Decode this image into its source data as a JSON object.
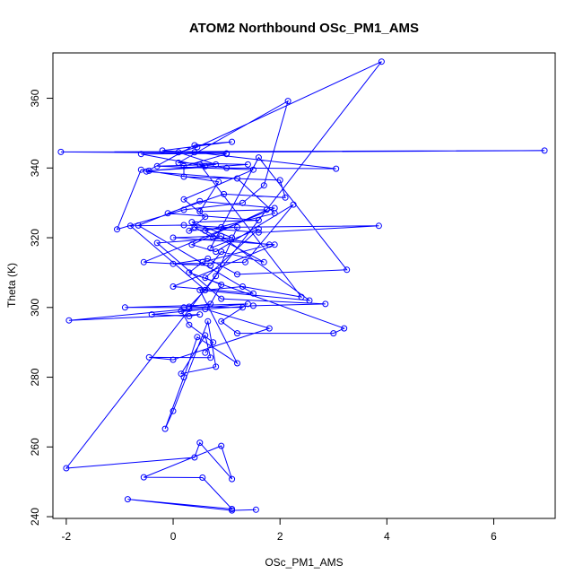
{
  "chart_data": {
    "type": "line",
    "title": "ATOM2 Northbound OSc_PM1_AMS",
    "xlabel": "OSc_PM1_AMS",
    "ylabel": "Theta (K)",
    "xlim": [
      -2.25,
      7.15
    ],
    "ylim": [
      239.5,
      373.0
    ],
    "x_ticks": [
      -2,
      0,
      2,
      4,
      6
    ],
    "y_ticks": [
      240,
      260,
      280,
      300,
      320,
      340,
      360
    ],
    "x_tick_labels": [
      "-2",
      "0",
      "2",
      "4",
      "6"
    ],
    "y_tick_labels": [
      "240",
      "260",
      "280",
      "300",
      "320",
      "340",
      "360"
    ],
    "grid": false,
    "legend": "none",
    "series_color": "#0000ff",
    "points": [
      [
        1.55,
        242.0
      ],
      [
        1.1,
        241.8
      ],
      [
        -0.85,
        245.0
      ],
      [
        1.1,
        242.2
      ],
      [
        0.55,
        251.2
      ],
      [
        -0.55,
        251.3
      ],
      [
        0.9,
        260.3
      ],
      [
        1.1,
        250.8
      ],
      [
        0.5,
        261.2
      ],
      [
        0.4,
        257.0
      ],
      [
        -2.0,
        253.9
      ],
      [
        3.9,
        370.5
      ],
      [
        0.45,
        346.0
      ],
      [
        0.1,
        344.5
      ],
      [
        0.8,
        341.0
      ],
      [
        -0.3,
        340.5
      ],
      [
        1.5,
        339.5
      ],
      [
        0.2,
        331.0
      ],
      [
        0.6,
        326.0
      ],
      [
        0.3,
        322.0
      ],
      [
        1.2,
        323.0
      ],
      [
        0.8,
        309.0
      ],
      [
        0.6,
        305.0
      ],
      [
        0.3,
        300.2
      ],
      [
        1.3,
        300.0
      ],
      [
        0.9,
        296.0
      ],
      [
        1.2,
        292.6
      ],
      [
        3.0,
        292.6
      ],
      [
        3.2,
        294.0
      ],
      [
        0.3,
        310.0
      ],
      [
        0.55,
        313.0
      ],
      [
        1.8,
        318.0
      ],
      [
        0.75,
        320.0
      ],
      [
        0.4,
        323.0
      ],
      [
        1.6,
        321.5
      ],
      [
        3.85,
        323.4
      ],
      [
        0.9,
        323.0
      ],
      [
        0.2,
        323.6
      ],
      [
        -0.8,
        323.4
      ],
      [
        0.6,
        305.0
      ],
      [
        1.3,
        306.0
      ],
      [
        2.4,
        303.0
      ],
      [
        0.5,
        341.0
      ],
      [
        1.0,
        340.0
      ],
      [
        3.05,
        339.8
      ],
      [
        0.4,
        344.5
      ],
      [
        6.95,
        345.0
      ],
      [
        -2.1,
        344.6
      ],
      [
        1.0,
        344.2
      ],
      [
        -0.6,
        344.0
      ],
      [
        0.6,
        340.5
      ],
      [
        -0.45,
        339.2
      ],
      [
        1.4,
        341.0
      ],
      [
        0.1,
        341.5
      ],
      [
        2.15,
        359.2
      ],
      [
        1.7,
        335.0
      ],
      [
        1.3,
        330.0
      ],
      [
        0.2,
        328.0
      ],
      [
        -1.05,
        322.4
      ],
      [
        -0.6,
        339.5
      ],
      [
        0.85,
        336.0
      ],
      [
        0.5,
        327.5
      ],
      [
        1.75,
        328.0
      ],
      [
        0.35,
        318.0
      ],
      [
        0.8,
        316.0
      ],
      [
        2.25,
        329.5
      ],
      [
        1.35,
        313.0
      ],
      [
        0.0,
        312.5
      ],
      [
        0.65,
        314.0
      ],
      [
        1.2,
        309.5
      ],
      [
        3.25,
        310.8
      ],
      [
        1.6,
        343.0
      ],
      [
        0.7,
        317.0
      ],
      [
        1.6,
        322.5
      ],
      [
        0.6,
        308.5
      ],
      [
        0.9,
        306.5
      ],
      [
        0.7,
        301.0
      ],
      [
        0.2,
        300.0
      ],
      [
        -0.9,
        300.0
      ],
      [
        1.4,
        301.0
      ],
      [
        0.3,
        299.6
      ],
      [
        -1.95,
        296.3
      ],
      [
        0.5,
        298.0
      ],
      [
        0.3,
        297.5
      ],
      [
        -0.4,
        298.0
      ],
      [
        0.6,
        299.5
      ],
      [
        1.8,
        294.0
      ],
      [
        0.0,
        285.0
      ],
      [
        -0.45,
        285.7
      ],
      [
        0.7,
        285.6
      ],
      [
        0.6,
        292.0
      ],
      [
        0.15,
        281.0
      ],
      [
        0.8,
        283.0
      ],
      [
        0.65,
        296.0
      ],
      [
        0.0,
        270.3
      ],
      [
        -0.15,
        265.2
      ],
      [
        0.2,
        280.0
      ],
      [
        0.45,
        291.5
      ],
      [
        1.2,
        284.0
      ],
      [
        0.5,
        305.0
      ],
      [
        2.55,
        302.0
      ],
      [
        0.9,
        320.5
      ],
      [
        0.0,
        320.0
      ],
      [
        1.9,
        318.0
      ],
      [
        0.0,
        306.0
      ],
      [
        1.5,
        304.0
      ],
      [
        -0.65,
        323.5
      ],
      [
        0.5,
        330.5
      ],
      [
        1.9,
        328.5
      ],
      [
        -0.55,
        313.0
      ],
      [
        0.7,
        312.0
      ],
      [
        0.9,
        316.0
      ],
      [
        1.7,
        313.0
      ],
      [
        0.6,
        322.0
      ],
      [
        1.9,
        327.0
      ],
      [
        1.2,
        337.0
      ],
      [
        -0.5,
        339.0
      ],
      [
        0.4,
        346.5
      ],
      [
        1.1,
        347.5
      ],
      [
        -0.2,
        345.0
      ],
      [
        1.0,
        344.0
      ],
      [
        0.2,
        340.5
      ],
      [
        0.2,
        337.5
      ],
      [
        2.0,
        336.5
      ],
      [
        2.1,
        331.5
      ],
      [
        0.95,
        332.5
      ],
      [
        -0.1,
        327.0
      ],
      [
        1.6,
        325.0
      ],
      [
        0.35,
        324.5
      ],
      [
        1.1,
        320.0
      ],
      [
        -0.3,
        318.5
      ],
      [
        0.9,
        302.5
      ],
      [
        2.85,
        301.0
      ],
      [
        1.5,
        300.5
      ],
      [
        0.15,
        299.0
      ],
      [
        0.3,
        295.0
      ],
      [
        0.75,
        290.0
      ],
      [
        0.6,
        287.0
      ]
    ]
  }
}
